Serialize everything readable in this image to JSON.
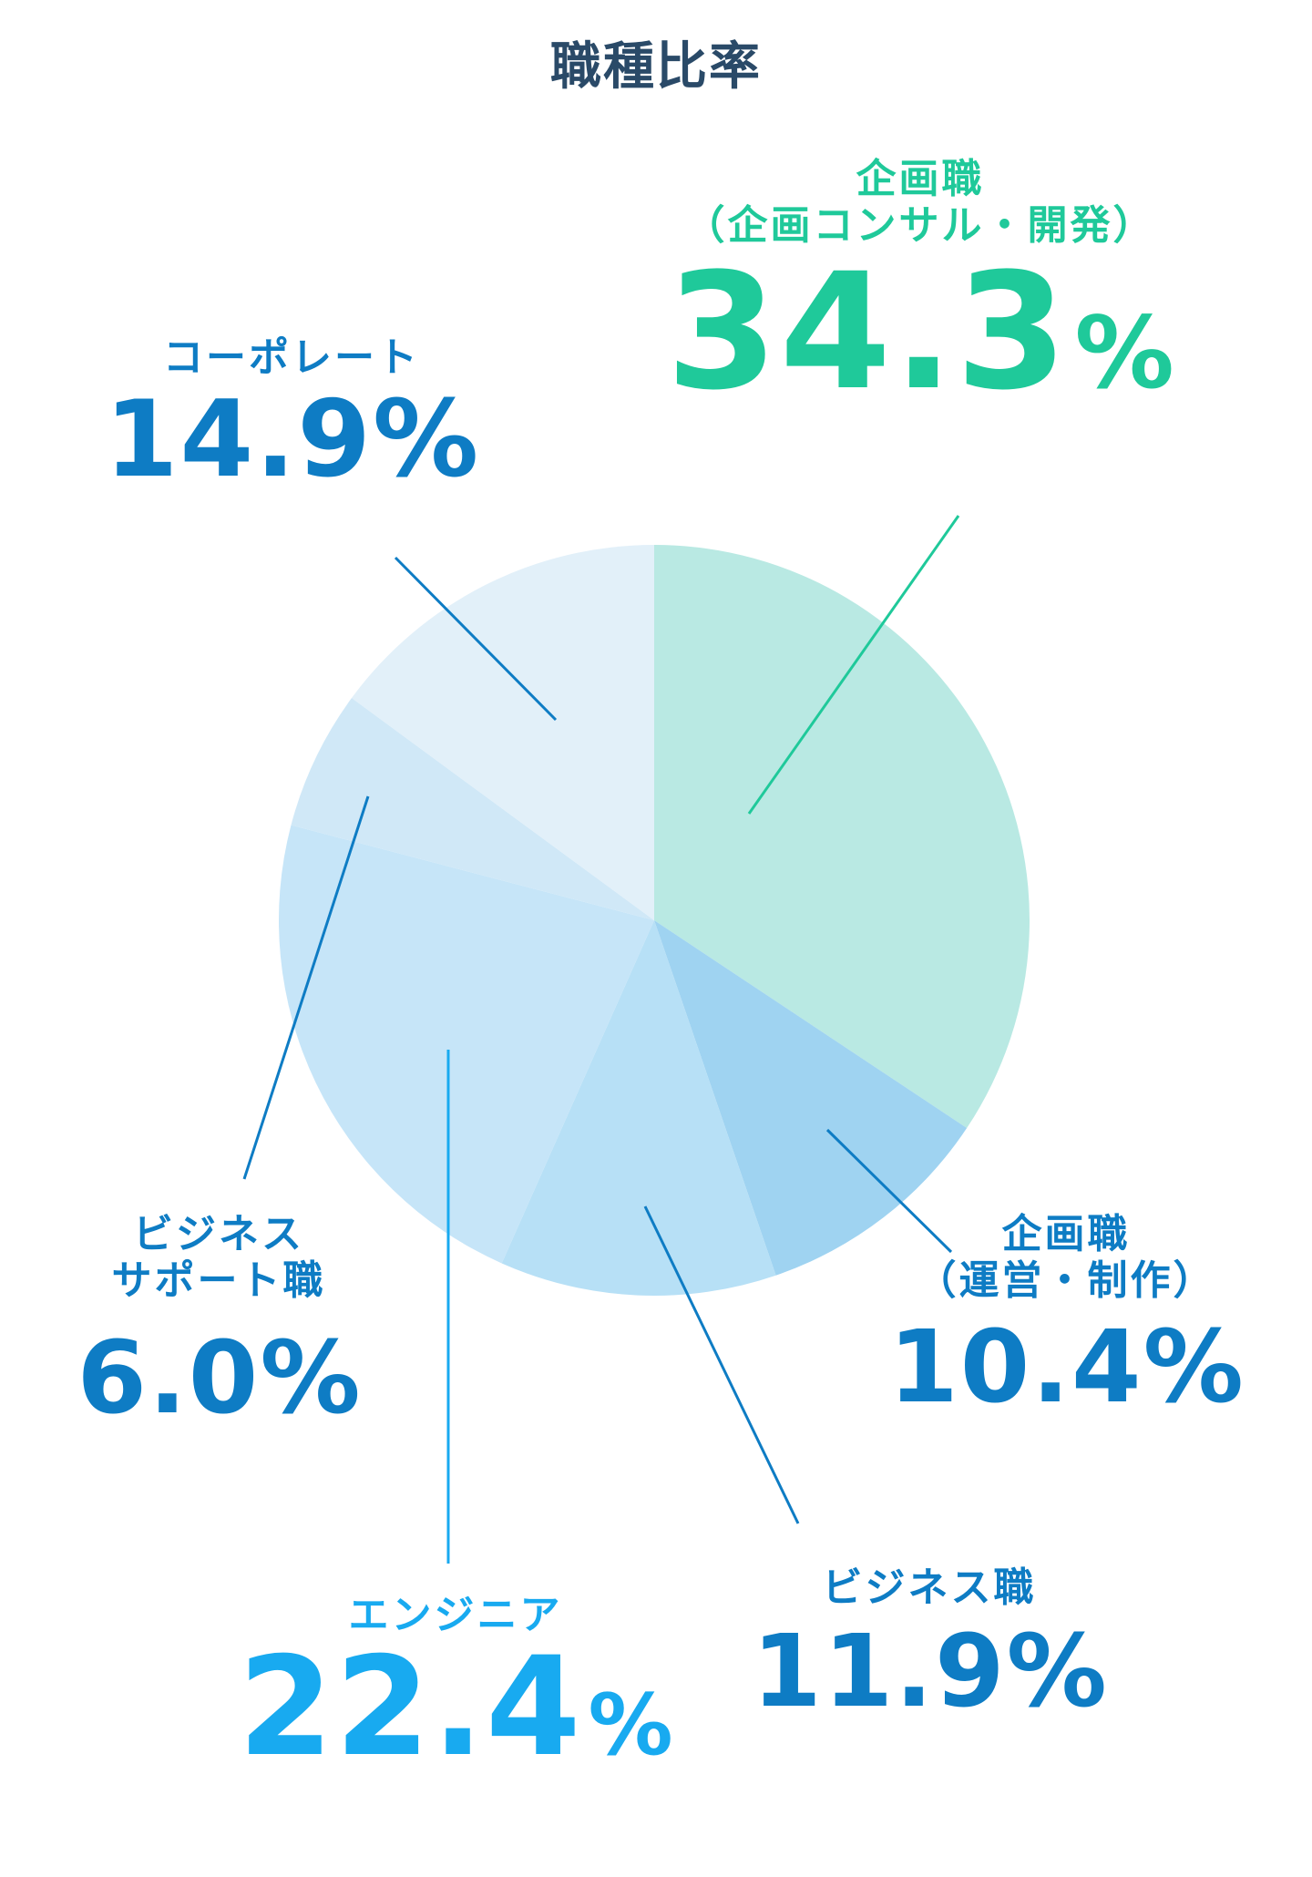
{
  "chart_data": {
    "type": "pie",
    "title": "職種比率",
    "slices": [
      {
        "label_lines": [
          "企画職",
          "（企画コンサル・開発）"
        ],
        "value": 34.3,
        "display_number": "34.3",
        "unit": "%",
        "fill": "#b9e9e3",
        "label_color": "#1fc99a",
        "leader_color": "#1fc99a"
      },
      {
        "label_lines": [
          "企画職",
          "（運営・制作）"
        ],
        "value": 10.4,
        "display_number": "10.4",
        "unit": "%",
        "fill": "#9fd3f1",
        "label_color": "#0e7cc4",
        "leader_color": "#0e7cc4"
      },
      {
        "label_lines": [
          "ビジネス職"
        ],
        "value": 11.9,
        "display_number": "11.9",
        "unit": "%",
        "fill": "#b7e0f6",
        "label_color": "#0e7cc4",
        "leader_color": "#0e7cc4"
      },
      {
        "label_lines": [
          "エンジニア"
        ],
        "value": 22.4,
        "display_number": "22.4",
        "unit": "%",
        "fill": "#c6e5f8",
        "label_color": "#18aaf0",
        "leader_color": "#18aaf0"
      },
      {
        "label_lines": [
          "ビジネス",
          "サポート職"
        ],
        "value": 6.0,
        "display_number": "6.0",
        "unit": "%",
        "fill": "#d0e8f7",
        "label_color": "#0e7cc4",
        "leader_color": "#0e7cc4"
      },
      {
        "label_lines": [
          "コーポレート"
        ],
        "value": 14.9,
        "display_number": "14.9",
        "unit": "%",
        "fill": "#e2f0f9",
        "label_color": "#0e7cc4",
        "leader_color": "#0e7cc4"
      }
    ]
  },
  "colors": {
    "title": "#2a4a68",
    "background": "#ffffff"
  }
}
